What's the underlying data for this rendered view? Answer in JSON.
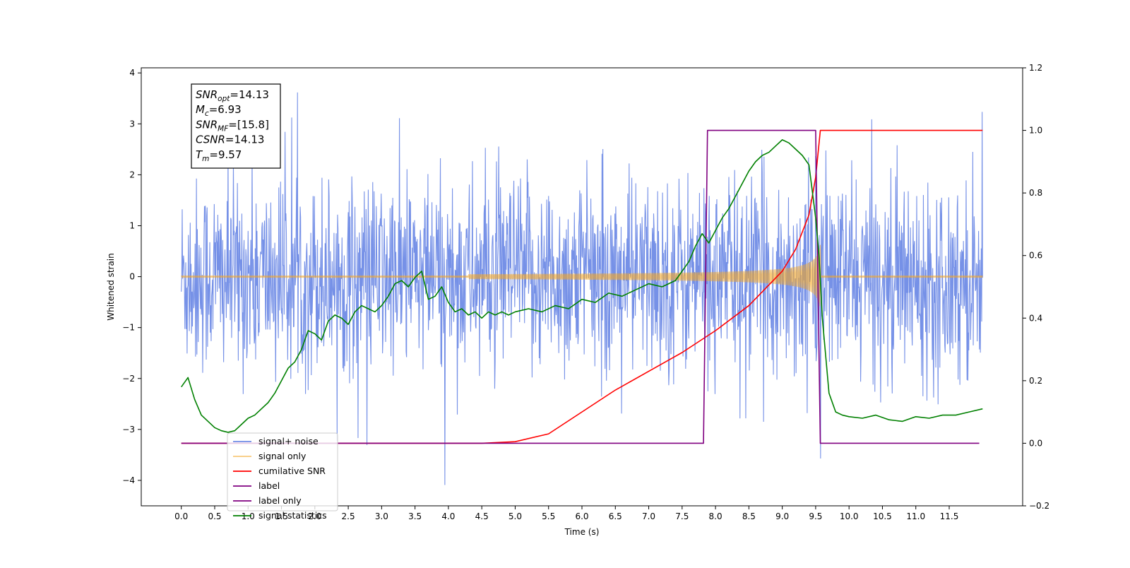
{
  "chart_data": {
    "type": "line",
    "xlabel": "Time (s)",
    "ylabel": "Whitened strain",
    "xlim": [
      -0.6,
      12.6
    ],
    "ylim": [
      -4.5,
      4.1
    ],
    "y2lim": [
      -0.2,
      1.2
    ],
    "x_ticks": [
      "0.0",
      "0.5",
      "1.0",
      "1.5",
      "2.0",
      "2.5",
      "3.0",
      "3.5",
      "4.0",
      "4.5",
      "5.0",
      "5.5",
      "6.0",
      "6.5",
      "7.0",
      "7.5",
      "8.0",
      "8.5",
      "9.0",
      "9.5",
      "10.0",
      "10.5",
      "11.0",
      "11.5"
    ],
    "y_ticks": [
      "4",
      "3",
      "2",
      "1",
      "0",
      "−1",
      "−2",
      "−3",
      "−4"
    ],
    "y2_ticks": [
      "1.2",
      "1.0",
      "0.8",
      "0.6",
      "0.4",
      "0.2",
      "0.0",
      "−0.2"
    ],
    "annotation_box": {
      "lines": [
        {
          "sym": "SNR",
          "sub": "opt",
          "val": "=14.13"
        },
        {
          "sym": "M",
          "sub": "c",
          "val": "=6.93"
        },
        {
          "sym": "SNR",
          "sub": "MF",
          "val": "=[15.8]"
        },
        {
          "sym": "CSNR",
          "sub": "",
          "val": "=14.13"
        },
        {
          "sym": "T",
          "sub": "m",
          "val": "=9.57"
        }
      ]
    },
    "legend_position": "lower-left",
    "series": [
      {
        "name": "signal+ noise",
        "color": "#6f8be6",
        "axis": "left",
        "description_key": "noise"
      },
      {
        "name": "signal only",
        "color": "#f5a623",
        "axis": "left"
      },
      {
        "name": "cumilative SNR",
        "color": "#ff0000",
        "axis": "right",
        "x": [
          0.0,
          4.5,
          5.0,
          5.5,
          6.0,
          6.5,
          7.0,
          7.5,
          8.0,
          8.5,
          9.0,
          9.2,
          9.4,
          9.5,
          9.57,
          12.0
        ],
        "values": [
          0.0,
          0.0,
          0.005,
          0.03,
          0.1,
          0.17,
          0.23,
          0.29,
          0.36,
          0.44,
          0.55,
          0.62,
          0.73,
          0.85,
          1.0,
          1.0
        ]
      },
      {
        "name": "label",
        "color": "#800080",
        "axis": "right",
        "x": [
          0.0,
          7.82,
          7.88,
          9.5,
          9.57,
          11.95
        ],
        "values": [
          0.0,
          0.0,
          1.0,
          1.0,
          0.0,
          0.0
        ]
      },
      {
        "name": "label only",
        "color": "#800080",
        "axis": "right"
      },
      {
        "name": "signal statistics",
        "color": "#008000",
        "axis": "right",
        "x": [
          0.0,
          0.1,
          0.2,
          0.3,
          0.4,
          0.5,
          0.6,
          0.7,
          0.8,
          0.9,
          1.0,
          1.1,
          1.2,
          1.3,
          1.4,
          1.5,
          1.6,
          1.7,
          1.8,
          1.9,
          2.0,
          2.1,
          2.2,
          2.3,
          2.4,
          2.5,
          2.6,
          2.7,
          2.8,
          2.9,
          3.0,
          3.1,
          3.2,
          3.3,
          3.4,
          3.5,
          3.6,
          3.7,
          3.8,
          3.9,
          4.0,
          4.1,
          4.2,
          4.3,
          4.4,
          4.5,
          4.6,
          4.7,
          4.8,
          4.9,
          5.0,
          5.2,
          5.4,
          5.6,
          5.8,
          6.0,
          6.2,
          6.4,
          6.6,
          6.8,
          7.0,
          7.2,
          7.4,
          7.6,
          7.7,
          7.8,
          7.9,
          8.0,
          8.1,
          8.2,
          8.3,
          8.4,
          8.5,
          8.6,
          8.7,
          8.8,
          8.9,
          9.0,
          9.1,
          9.2,
          9.3,
          9.4,
          9.5,
          9.55,
          9.6,
          9.7,
          9.8,
          9.9,
          10.0,
          10.2,
          10.4,
          10.6,
          10.8,
          11.0,
          11.2,
          11.4,
          11.6,
          11.8,
          12.0
        ],
        "values": [
          0.18,
          0.21,
          0.14,
          0.09,
          0.07,
          0.05,
          0.04,
          0.035,
          0.04,
          0.06,
          0.08,
          0.09,
          0.11,
          0.13,
          0.16,
          0.2,
          0.24,
          0.26,
          0.3,
          0.36,
          0.35,
          0.33,
          0.39,
          0.41,
          0.4,
          0.38,
          0.42,
          0.44,
          0.43,
          0.42,
          0.44,
          0.47,
          0.51,
          0.52,
          0.5,
          0.53,
          0.55,
          0.46,
          0.47,
          0.5,
          0.45,
          0.42,
          0.43,
          0.41,
          0.42,
          0.4,
          0.42,
          0.41,
          0.42,
          0.41,
          0.42,
          0.43,
          0.42,
          0.44,
          0.43,
          0.46,
          0.45,
          0.48,
          0.47,
          0.49,
          0.51,
          0.5,
          0.52,
          0.58,
          0.63,
          0.67,
          0.64,
          0.68,
          0.72,
          0.75,
          0.79,
          0.83,
          0.87,
          0.9,
          0.92,
          0.93,
          0.95,
          0.97,
          0.96,
          0.94,
          0.92,
          0.89,
          0.72,
          0.6,
          0.4,
          0.16,
          0.1,
          0.09,
          0.085,
          0.08,
          0.09,
          0.075,
          0.07,
          0.085,
          0.08,
          0.09,
          0.09,
          0.1,
          0.11
        ]
      }
    ]
  }
}
